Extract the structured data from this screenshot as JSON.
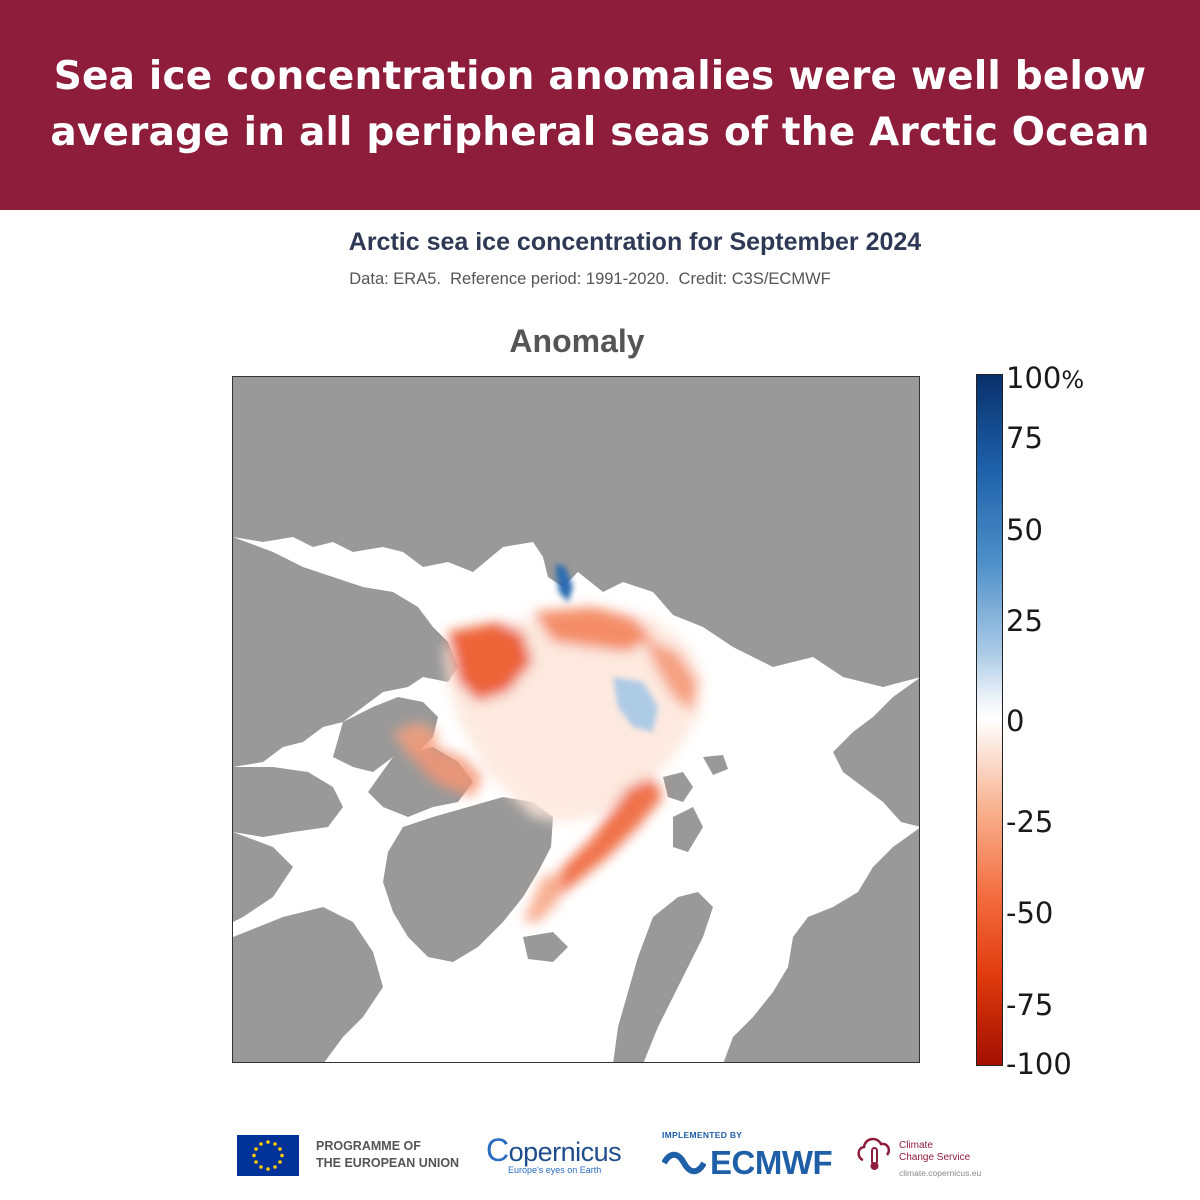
{
  "headline": {
    "line1": "Sea ice concentration anomalies were well below",
    "line2": "average in all peripheral seas of the Arctic Ocean"
  },
  "map": {
    "title": "Arctic sea ice concentration for September 2024",
    "subtitle": "Data: ERA5.  Reference period: 1991-2020.  Credit: C3S/ECMWF",
    "panel_title": "Anomaly",
    "colors": {
      "land": "#999999",
      "ocean": "#ffffff",
      "negative_anomaly": "#e03b0e",
      "positive_anomaly": "#2b6cb0"
    }
  },
  "colorbar": {
    "ticks": [
      "100",
      "75",
      "50",
      "25",
      "0",
      "-25",
      "-50",
      "-75",
      "-100"
    ],
    "unit": "%",
    "min": -100,
    "max": 100
  },
  "footer": {
    "eu_text_line1": "PROGRAMME OF",
    "eu_text_line2": "THE EUROPEAN UNION",
    "copernicus_name": "opernicus",
    "copernicus_tagline": "Europe's eyes on Earth",
    "ecmwf_implemented_by": "IMPLEMENTED BY",
    "ecmwf_name": "ECMWF",
    "c3s_name_line1": "Climate",
    "c3s_name_line2": "Change Service",
    "c3s_url": "climate.copernicus.eu"
  }
}
